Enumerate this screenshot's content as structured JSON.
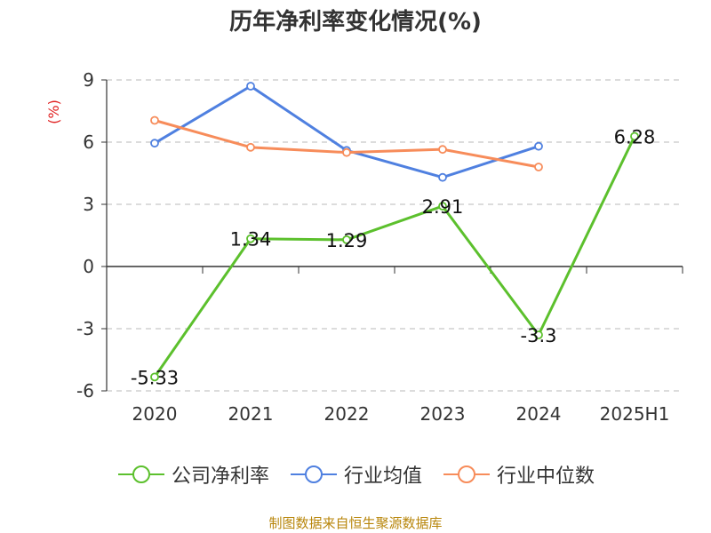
{
  "chart_data": {
    "type": "line",
    "title": "历年净利率变化情况(%)",
    "ylabel": "(%)",
    "categories": [
      "2020",
      "2021",
      "2022",
      "2023",
      "2024",
      "2025H1"
    ],
    "ylim": [
      -6,
      9
    ],
    "yticks": [
      -6,
      -3,
      0,
      3,
      6,
      9
    ],
    "grid": true,
    "legend": "bottom",
    "series": [
      {
        "name": "公司净利率",
        "color": "#5cc02d",
        "values": [
          -5.33,
          1.34,
          1.29,
          2.91,
          -3.3,
          6.28
        ],
        "show_labels": true
      },
      {
        "name": "行业均值",
        "color": "#4f80e0",
        "values": [
          5.95,
          8.7,
          5.6,
          4.3,
          5.8,
          null
        ],
        "show_labels": false
      },
      {
        "name": "行业中位数",
        "color": "#f78c5a",
        "values": [
          7.05,
          5.75,
          5.5,
          5.65,
          4.8,
          null
        ],
        "show_labels": false
      }
    ],
    "data_labels": [
      "-5.33",
      "1.34",
      "1.29",
      "2.91",
      "-3.3",
      "6.28"
    ]
  },
  "source": "制图数据来自恒生聚源数据库"
}
